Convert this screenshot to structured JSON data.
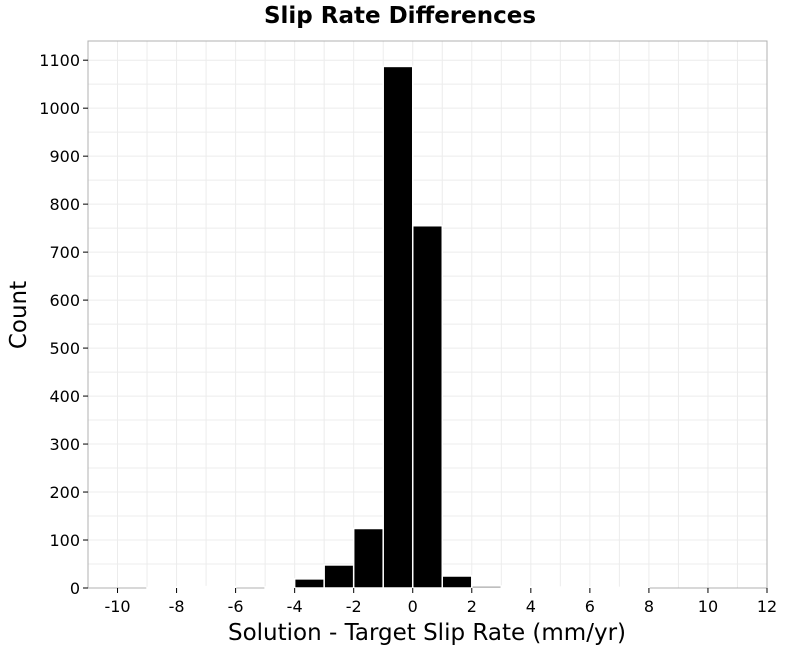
{
  "chart_data": {
    "type": "bar",
    "title": "Slip Rate Differences",
    "xlabel": "Solution - Target Slip Rate (mm/yr)",
    "ylabel": "Count",
    "xlim": [
      -11,
      12
    ],
    "ylim": [
      0,
      1140
    ],
    "xticks": [
      -10,
      -8,
      -6,
      -4,
      -2,
      0,
      2,
      4,
      6,
      8,
      10,
      12
    ],
    "yticks": [
      0,
      100,
      200,
      300,
      400,
      500,
      600,
      700,
      800,
      900,
      1000,
      1100
    ],
    "grid": true,
    "bin_width": 1,
    "bins": [
      {
        "start": -10,
        "count": 0
      },
      {
        "start": -9,
        "count": 1
      },
      {
        "start": -8,
        "count": 2
      },
      {
        "start": -7,
        "count": 3
      },
      {
        "start": -6,
        "count": 0
      },
      {
        "start": -5,
        "count": 2
      },
      {
        "start": -4,
        "count": 19
      },
      {
        "start": -3,
        "count": 48
      },
      {
        "start": -2,
        "count": 124
      },
      {
        "start": -1,
        "count": 1087
      },
      {
        "start": 0,
        "count": 755
      },
      {
        "start": 1,
        "count": 25
      },
      {
        "start": 2,
        "count": 4
      },
      {
        "start": 3,
        "count": 3
      },
      {
        "start": 4,
        "count": 2
      },
      {
        "start": 5,
        "count": 1
      },
      {
        "start": 6,
        "count": 1
      },
      {
        "start": 7,
        "count": 1
      },
      {
        "start": 8,
        "count": 0
      },
      {
        "start": 9,
        "count": 0
      },
      {
        "start": 10,
        "count": 0
      }
    ]
  }
}
